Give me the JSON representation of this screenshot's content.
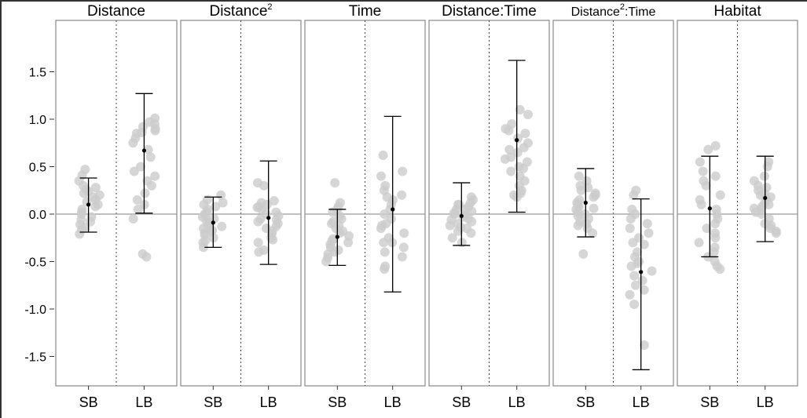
{
  "chart_data": {
    "type": "scatter",
    "panel_type": "faceted dot-and-errorbar with jittered points",
    "ylim": [
      -1.8,
      1.8
    ],
    "yticks": [
      -1.5,
      -1.0,
      -0.5,
      0.0,
      0.5,
      1.0,
      1.5
    ],
    "ytick_labels": [
      "-1.5",
      "-1.0",
      "-0.5",
      "0.0",
      "0.5",
      "1.0",
      "1.5"
    ],
    "categories": [
      "SB",
      "LB"
    ],
    "reference_line": 0,
    "grid": false,
    "colors": {
      "points": "#cccccc",
      "mean": "#000000",
      "errorbar": "#000000",
      "panel_border": "#888888",
      "zero_line": "#999999"
    },
    "panels": [
      {
        "title": "Distance",
        "title_sup": "",
        "title_suffix": "",
        "groups": [
          {
            "category": "SB",
            "mean": 0.1,
            "lower": -0.19,
            "upper": 0.38,
            "points": [
              0.41,
              0.35,
              0.3,
              0.26,
              0.24,
              0.22,
              0.2,
              0.18,
              0.15,
              0.13,
              0.1,
              0.08,
              0.05,
              0.02,
              0.0,
              -0.03,
              -0.06,
              -0.08,
              -0.11,
              -0.14,
              -0.16,
              -0.21,
              0.47,
              0.28
            ]
          },
          {
            "category": "LB",
            "mean": 0.67,
            "lower": 0.01,
            "upper": 1.27,
            "points": [
              1.01,
              0.97,
              0.95,
              0.9,
              0.88,
              0.85,
              0.8,
              0.75,
              0.68,
              0.6,
              0.5,
              0.45,
              0.4,
              0.35,
              0.3,
              0.22,
              0.15,
              0.1,
              0.05,
              -0.05,
              -0.42,
              -0.45,
              0.92,
              0.86
            ]
          }
        ]
      },
      {
        "title": "Distance",
        "title_sup": "2",
        "title_suffix": "",
        "groups": [
          {
            "category": "SB",
            "mean": -0.09,
            "lower": -0.35,
            "upper": 0.18,
            "points": [
              0.2,
              0.15,
              0.1,
              0.08,
              0.05,
              0.02,
              0.0,
              -0.02,
              -0.05,
              -0.07,
              -0.09,
              -0.11,
              -0.13,
              -0.15,
              -0.17,
              -0.2,
              -0.22,
              -0.25,
              -0.28,
              -0.3,
              -0.35,
              0.12,
              -0.03,
              -0.18
            ]
          },
          {
            "category": "LB",
            "mean": -0.04,
            "lower": -0.53,
            "upper": 0.56,
            "points": [
              0.33,
              0.3,
              0.12,
              0.1,
              0.08,
              0.05,
              0.02,
              0.0,
              -0.02,
              -0.05,
              -0.08,
              -0.1,
              -0.13,
              -0.15,
              -0.18,
              -0.21,
              -0.25,
              -0.3,
              -0.38,
              -0.4,
              0.07,
              -0.06,
              0.14,
              -0.27
            ]
          }
        ]
      },
      {
        "title": "Time",
        "title_sup": "",
        "title_suffix": "",
        "groups": [
          {
            "category": "SB",
            "mean": -0.24,
            "lower": -0.54,
            "upper": 0.05,
            "points": [
              0.33,
              0.12,
              0.08,
              0.05,
              0.02,
              -0.02,
              -0.05,
              -0.1,
              -0.12,
              -0.15,
              -0.18,
              -0.2,
              -0.23,
              -0.26,
              -0.3,
              -0.32,
              -0.35,
              -0.4,
              -0.42,
              -0.46,
              -0.5,
              -0.08,
              -0.28,
              -0.38
            ]
          },
          {
            "category": "LB",
            "mean": 0.05,
            "lower": -0.82,
            "upper": 1.03,
            "points": [
              0.62,
              0.45,
              0.3,
              0.25,
              0.2,
              0.15,
              0.1,
              0.05,
              0.0,
              -0.05,
              -0.1,
              -0.15,
              -0.2,
              -0.25,
              -0.3,
              -0.35,
              -0.4,
              -0.45,
              -0.55,
              -0.58,
              0.4,
              -0.12,
              0.18,
              -0.3
            ]
          }
        ]
      },
      {
        "title": "Distance:Time",
        "title_sup": "",
        "title_suffix": "",
        "groups": [
          {
            "category": "SB",
            "mean": -0.02,
            "lower": -0.33,
            "upper": 0.33,
            "points": [
              0.18,
              0.15,
              0.12,
              0.1,
              0.08,
              0.05,
              0.03,
              0.01,
              -0.01,
              -0.03,
              -0.05,
              -0.08,
              -0.1,
              -0.12,
              -0.15,
              -0.18,
              -0.2,
              -0.25,
              -0.3,
              0.05,
              -0.06,
              0.1,
              -0.14,
              0.0
            ]
          },
          {
            "category": "LB",
            "mean": 0.78,
            "lower": 0.02,
            "upper": 1.62,
            "points": [
              1.1,
              1.05,
              0.95,
              0.9,
              0.85,
              0.8,
              0.75,
              0.7,
              0.65,
              0.6,
              0.55,
              0.5,
              0.45,
              0.4,
              0.35,
              0.3,
              0.25,
              0.2,
              0.18,
              0.22,
              0.68,
              0.88,
              0.58,
              0.48
            ]
          }
        ]
      },
      {
        "title": "Distance",
        "title_sup": "2",
        "title_suffix": ":Time",
        "groups": [
          {
            "category": "SB",
            "mean": 0.12,
            "lower": -0.24,
            "upper": 0.48,
            "points": [
              0.4,
              0.35,
              0.3,
              0.25,
              0.22,
              0.2,
              0.18,
              0.15,
              0.12,
              0.1,
              0.08,
              0.05,
              0.02,
              0.0,
              -0.02,
              -0.05,
              -0.08,
              -0.12,
              -0.15,
              -0.2,
              -0.42,
              0.28,
              0.06,
              -0.1
            ]
          },
          {
            "category": "LB",
            "mean": -0.61,
            "lower": -1.64,
            "upper": 0.16,
            "points": [
              0.25,
              0.2,
              0.05,
              0.0,
              -0.05,
              -0.1,
              -0.15,
              -0.2,
              -0.25,
              -0.3,
              -0.4,
              -0.45,
              -0.5,
              -0.55,
              -0.6,
              -0.65,
              -0.7,
              -0.75,
              -0.8,
              -0.85,
              -0.95,
              -1.38,
              -0.52,
              -0.32
            ]
          }
        ]
      },
      {
        "title": "Habitat",
        "title_sup": "",
        "title_suffix": "",
        "groups": [
          {
            "category": "SB",
            "mean": 0.06,
            "lower": -0.45,
            "upper": 0.61,
            "points": [
              0.72,
              0.68,
              0.55,
              0.45,
              0.4,
              0.35,
              0.3,
              0.2,
              0.1,
              0.05,
              0.0,
              -0.05,
              -0.1,
              -0.15,
              -0.2,
              -0.25,
              -0.3,
              -0.35,
              -0.4,
              -0.45,
              -0.5,
              -0.55,
              -0.58,
              0.15
            ]
          },
          {
            "category": "LB",
            "mean": 0.17,
            "lower": -0.29,
            "upper": 0.61,
            "points": [
              0.55,
              0.5,
              0.4,
              0.35,
              0.3,
              0.25,
              0.22,
              0.2,
              0.18,
              0.15,
              0.12,
              0.1,
              0.08,
              0.05,
              0.02,
              0.0,
              -0.05,
              -0.1,
              -0.15,
              -0.18,
              -0.2,
              0.28,
              0.06,
              -0.12
            ]
          }
        ]
      }
    ]
  }
}
